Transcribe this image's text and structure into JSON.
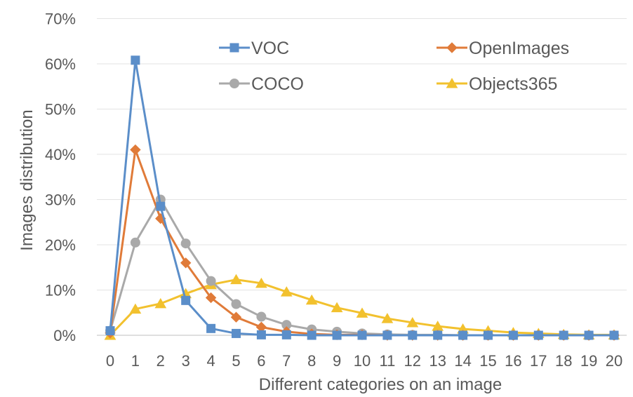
{
  "chart_data": {
    "type": "line",
    "title": "",
    "xlabel": "Different categories on an image",
    "ylabel": "Images distribution",
    "categories": [
      "0",
      "1",
      "2",
      "3",
      "4",
      "5",
      "6",
      "7",
      "8",
      "9",
      "10",
      "11",
      "12",
      "13",
      "14",
      "15",
      "16",
      "17",
      "18",
      "19",
      "20"
    ],
    "ylim": [
      0,
      70
    ],
    "yticks": [
      "0%",
      "10%",
      "20%",
      "30%",
      "40%",
      "50%",
      "60%",
      "70%"
    ],
    "grid": true,
    "legend_position": "top",
    "series": [
      {
        "name": "VOC",
        "color": "#5b8ec9",
        "marker": "square",
        "values": [
          1,
          60.8,
          28.5,
          7.7,
          1.5,
          0.4,
          0.1,
          0.1,
          0,
          0,
          0,
          0,
          0,
          0,
          0,
          0,
          0,
          0,
          0,
          0,
          0
        ]
      },
      {
        "name": "OpenImages",
        "color": "#e07b39",
        "marker": "diamond",
        "values": [
          0.5,
          41,
          25.8,
          16,
          8.3,
          4,
          1.8,
          0.8,
          0.3,
          0.1,
          0.1,
          0,
          0,
          0,
          0,
          0,
          0,
          0,
          0,
          0,
          0
        ]
      },
      {
        "name": "COCO",
        "color": "#a9a9a9",
        "marker": "circle",
        "values": [
          1,
          20.5,
          30,
          20.3,
          12,
          6.9,
          4.1,
          2.3,
          1.3,
          0.8,
          0.4,
          0.2,
          0.1,
          0.1,
          0,
          0,
          0,
          0,
          0,
          0,
          0
        ]
      },
      {
        "name": "Objects365",
        "color": "#f2c12e",
        "marker": "triangle",
        "values": [
          0,
          5.8,
          7,
          9.2,
          11.2,
          12.3,
          11.5,
          9.6,
          7.8,
          6.1,
          4.9,
          3.7,
          2.8,
          2,
          1.4,
          1,
          0.6,
          0.4,
          0.2,
          0.1,
          0.1
        ]
      }
    ]
  }
}
